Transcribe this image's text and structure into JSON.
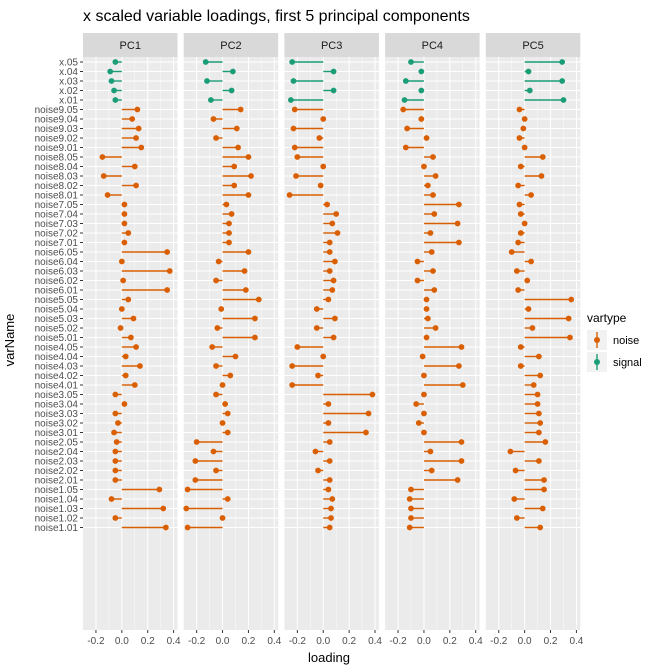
{
  "chart_data": {
    "type": "lollipop",
    "title": "x scaled variable loadings, first 5 principal components",
    "xlabel": "loading",
    "ylabel": "varName",
    "xlim": [
      -0.3,
      0.43
    ],
    "x_ticks": [
      -0.2,
      0.0,
      0.2,
      0.4
    ],
    "x_tick_labels": [
      "-0.2",
      "0.0",
      "0.2",
      "0.4"
    ],
    "panels": [
      "PC1",
      "PC2",
      "PC3",
      "PC4",
      "PC5"
    ],
    "variables": [
      "x.05",
      "x.04",
      "x.03",
      "x.02",
      "x.01",
      "noise9.05",
      "noise9.04",
      "noise9.03",
      "noise9.02",
      "noise9.01",
      "noise8.05",
      "noise8.04",
      "noise8.03",
      "noise8.02",
      "noise8.01",
      "noise7.05",
      "noise7.04",
      "noise7.03",
      "noise7.02",
      "noise7.01",
      "noise6.05",
      "noise6.04",
      "noise6.03",
      "noise6.02",
      "noise6.01",
      "noise5.05",
      "noise5.04",
      "noise5.03",
      "noise5.02",
      "noise5.01",
      "noise4.05",
      "noise4.04",
      "noise4.03",
      "noise4.02",
      "noise4.01",
      "noise3.05",
      "noise3.04",
      "noise3.03",
      "noise3.02",
      "noise3.01",
      "noise2.05",
      "noise2.04",
      "noise2.03",
      "noise2.02",
      "noise2.01",
      "noise1.05",
      "noise1.04",
      "noise1.03",
      "noise1.02",
      "noise1.01"
    ],
    "vartype": [
      "signal",
      "signal",
      "signal",
      "signal",
      "signal",
      "noise",
      "noise",
      "noise",
      "noise",
      "noise",
      "noise",
      "noise",
      "noise",
      "noise",
      "noise",
      "noise",
      "noise",
      "noise",
      "noise",
      "noise",
      "noise",
      "noise",
      "noise",
      "noise",
      "noise",
      "noise",
      "noise",
      "noise",
      "noise",
      "noise",
      "noise",
      "noise",
      "noise",
      "noise",
      "noise",
      "noise",
      "noise",
      "noise",
      "noise",
      "noise",
      "noise",
      "noise",
      "noise",
      "noise",
      "noise",
      "noise",
      "noise",
      "noise",
      "noise",
      "noise"
    ],
    "loadings": {
      "PC1": [
        -0.05,
        -0.09,
        -0.08,
        -0.06,
        -0.05,
        0.12,
        0.08,
        0.13,
        0.11,
        0.15,
        -0.15,
        0.1,
        -0.14,
        0.11,
        -0.11,
        0.02,
        0.02,
        0.02,
        0.05,
        0.02,
        0.35,
        0.0,
        0.37,
        0.01,
        0.35,
        0.05,
        0.0,
        0.09,
        -0.01,
        0.07,
        0.11,
        0.03,
        0.14,
        0.03,
        0.1,
        -0.05,
        0.02,
        -0.05,
        -0.03,
        -0.06,
        -0.04,
        -0.05,
        -0.05,
        -0.05,
        -0.05,
        0.29,
        -0.08,
        0.32,
        -0.05,
        0.34
      ],
      "PC2": [
        -0.13,
        0.08,
        -0.12,
        0.07,
        -0.09,
        0.14,
        -0.07,
        0.11,
        -0.05,
        0.12,
        0.2,
        0.09,
        0.22,
        0.09,
        0.2,
        0.03,
        0.07,
        0.05,
        0.05,
        0.05,
        0.2,
        -0.03,
        0.17,
        -0.05,
        0.18,
        0.28,
        -0.01,
        0.25,
        -0.04,
        0.25,
        -0.08,
        0.1,
        -0.05,
        0.06,
        0.0,
        -0.05,
        0.02,
        0.04,
        0.0,
        0.04,
        -0.2,
        -0.07,
        -0.21,
        -0.05,
        -0.21,
        -0.27,
        0.04,
        -0.28,
        0.0,
        -0.27
      ],
      "PC3": [
        -0.24,
        0.08,
        -0.23,
        0.08,
        -0.25,
        -0.22,
        0.0,
        -0.23,
        -0.03,
        -0.22,
        -0.2,
        0.0,
        -0.21,
        -0.02,
        -0.26,
        0.03,
        0.1,
        0.07,
        0.11,
        0.05,
        0.05,
        0.09,
        0.05,
        0.08,
        0.07,
        0.04,
        -0.05,
        0.09,
        -0.05,
        0.08,
        -0.2,
        0.0,
        -0.24,
        -0.04,
        -0.24,
        0.38,
        0.04,
        0.35,
        0.04,
        0.33,
        0.05,
        -0.06,
        0.05,
        -0.04,
        0.05,
        0.04,
        0.07,
        0.06,
        0.06,
        0.05
      ],
      "PC4": [
        -0.1,
        -0.02,
        -0.14,
        -0.02,
        -0.15,
        -0.16,
        -0.02,
        -0.13,
        0.02,
        -0.14,
        0.07,
        0.0,
        0.09,
        0.03,
        0.07,
        0.27,
        0.08,
        0.26,
        0.05,
        0.27,
        0.06,
        -0.05,
        0.07,
        -0.05,
        0.08,
        0.02,
        0.02,
        0.03,
        0.09,
        0.02,
        0.29,
        -0.01,
        0.27,
        0.0,
        0.3,
        0.0,
        -0.06,
        0.0,
        -0.04,
        0.0,
        0.29,
        0.05,
        0.29,
        0.06,
        0.26,
        -0.1,
        -0.11,
        -0.1,
        -0.1,
        -0.11
      ],
      "PC5": [
        0.29,
        0.03,
        0.29,
        0.04,
        0.3,
        -0.04,
        0.0,
        -0.01,
        -0.04,
        0.0,
        0.14,
        -0.03,
        0.13,
        -0.05,
        0.05,
        -0.04,
        -0.03,
        0.0,
        -0.03,
        -0.05,
        -0.1,
        0.05,
        -0.06,
        0.02,
        -0.05,
        0.36,
        0.03,
        0.34,
        0.06,
        0.35,
        -0.03,
        0.11,
        -0.03,
        0.12,
        0.07,
        0.1,
        0.1,
        0.11,
        0.12,
        0.11,
        0.16,
        -0.11,
        0.11,
        -0.07,
        0.15,
        0.15,
        -0.08,
        0.14,
        -0.06,
        0.12
      ]
    },
    "legend": {
      "title": "vartype",
      "position": "right",
      "entries": [
        {
          "label": "noise",
          "color": "#d95f02"
        },
        {
          "label": "signal",
          "color": "#1b9e77"
        }
      ]
    },
    "colors": {
      "noise": "#d95f02",
      "signal": "#1b9e77",
      "panel_background": "#ebebeb",
      "strip_background": "#d9d9d9",
      "grid_line": "#ffffff"
    },
    "grid": true
  }
}
